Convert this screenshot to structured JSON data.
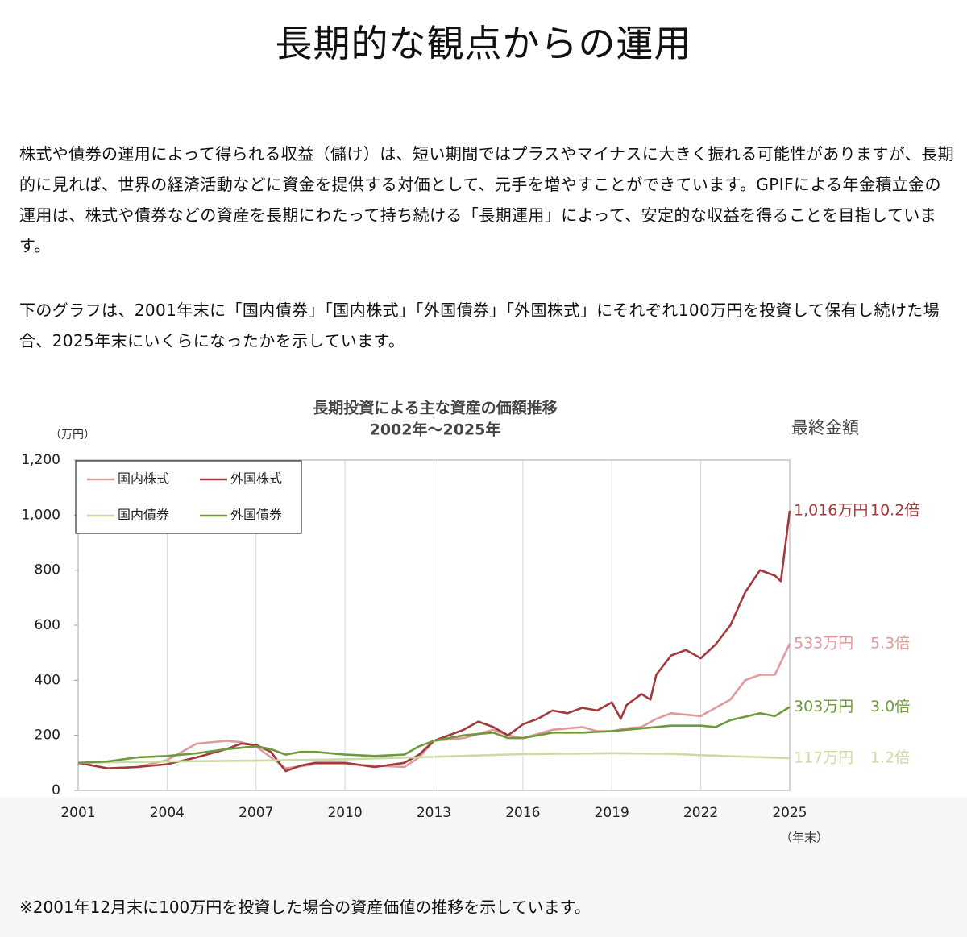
{
  "page": {
    "heading": "長期的な観点からの運用",
    "paragraphs": [
      "株式や債券の運用によって得られる収益（儲け）は、短い期間ではプラスやマイナスに大きく振れる可能性がありますが、長期的に見れば、世界の経済活動などに資金を提供する対価として、元手を増やすことができています。GPIFによる年金積立金の運用は、株式や債券などの資産を長期にわたって持ち続ける「長期運用」によって、安定的な収益を得ることを目指しています。",
      "下のグラフは、2001年末に「国内債券」「国内株式」「外国債券」「外国株式」にそれぞれ100万円を投資して保有し続けた場合、2025年末にいくらになったかを示しています。"
    ],
    "footnote": "※2001年12月末に100万円を投資した場合の資産価値の推移を示しています。"
  },
  "chart_data": {
    "type": "line",
    "title": "長期投資による主な資産の価額推移",
    "subtitle": "2002年～2025年",
    "y_unit": "（万円）",
    "x_unit": "（年末）",
    "end_header": "最終金額",
    "xlim": [
      2001,
      2025
    ],
    "xticks": [
      2001,
      2004,
      2007,
      2010,
      2013,
      2016,
      2019,
      2022,
      2025
    ],
    "ylim": [
      0,
      1200
    ],
    "yticks": [
      0,
      200,
      400,
      600,
      800,
      {
        "value": 1000,
        "label": "1,000"
      },
      {
        "value": 1200,
        "label": "1,200"
      }
    ],
    "grid": true,
    "legend": "top-left",
    "series": [
      {
        "name": "国内株式",
        "color": "#e09a9a",
        "end_label": "533万円",
        "multiple": "5.3倍",
        "x": [
          2001,
          2002,
          2003,
          2004,
          2005,
          2006,
          2006.5,
          2007,
          2007.5,
          2008,
          2009,
          2010,
          2011,
          2012,
          2012.5,
          2013,
          2014,
          2015,
          2015.5,
          2016,
          2017,
          2018,
          2018.5,
          2019,
          2019.5,
          2020,
          2020.5,
          2021,
          2022,
          2022.5,
          2023,
          2023.5,
          2024,
          2024.5,
          2025
        ],
        "values": [
          100,
          80,
          85,
          110,
          170,
          180,
          175,
          160,
          120,
          80,
          95,
          95,
          90,
          85,
          120,
          180,
          190,
          220,
          200,
          190,
          220,
          230,
          215,
          215,
          225,
          230,
          260,
          280,
          270,
          300,
          330,
          400,
          420,
          420,
          533
        ]
      },
      {
        "name": "外国株式",
        "color": "#a23a3c",
        "end_label": "1,016万円",
        "multiple": "10.2倍",
        "x": [
          2001,
          2002,
          2003,
          2004,
          2005,
          2006,
          2006.5,
          2007,
          2007.5,
          2008,
          2008.5,
          2009,
          2010,
          2011,
          2012,
          2012.5,
          2013,
          2014,
          2014.5,
          2015,
          2015.5,
          2016,
          2016.5,
          2017,
          2017.5,
          2018,
          2018.5,
          2019,
          2019.3,
          2019.5,
          2020,
          2020.3,
          2020.5,
          2021,
          2021.5,
          2022,
          2022.5,
          2023,
          2023.5,
          2024,
          2024.5,
          2024.7,
          2025
        ],
        "values": [
          100,
          80,
          85,
          95,
          120,
          150,
          170,
          165,
          140,
          70,
          90,
          100,
          100,
          85,
          100,
          130,
          180,
          220,
          250,
          230,
          200,
          240,
          260,
          290,
          280,
          300,
          290,
          320,
          260,
          310,
          350,
          330,
          420,
          490,
          510,
          480,
          530,
          600,
          720,
          800,
          780,
          760,
          1016
        ]
      },
      {
        "name": "国内債券",
        "color": "#c9dca4",
        "end_label": "117万円",
        "multiple": "1.2倍",
        "x": [
          2001,
          2004,
          2007,
          2010,
          2013,
          2016,
          2019,
          2021,
          2022,
          2025
        ],
        "values": [
          100,
          105,
          108,
          113,
          122,
          132,
          135,
          133,
          128,
          117
        ]
      },
      {
        "name": "外国債券",
        "color": "#6d9a3a",
        "end_label": "303万円",
        "multiple": "3.0倍",
        "x": [
          2001,
          2002,
          2003,
          2004,
          2005,
          2006,
          2007,
          2007.5,
          2008,
          2008.5,
          2009,
          2010,
          2011,
          2012,
          2012.5,
          2013,
          2014,
          2015,
          2015.5,
          2016,
          2017,
          2018,
          2019,
          2020,
          2021,
          2022,
          2022.5,
          2023,
          2024,
          2024.5,
          2025
        ],
        "values": [
          100,
          105,
          120,
          125,
          135,
          150,
          160,
          150,
          130,
          140,
          140,
          130,
          125,
          130,
          160,
          180,
          200,
          210,
          190,
          190,
          210,
          210,
          215,
          225,
          235,
          235,
          230,
          255,
          280,
          270,
          303
        ]
      }
    ]
  }
}
